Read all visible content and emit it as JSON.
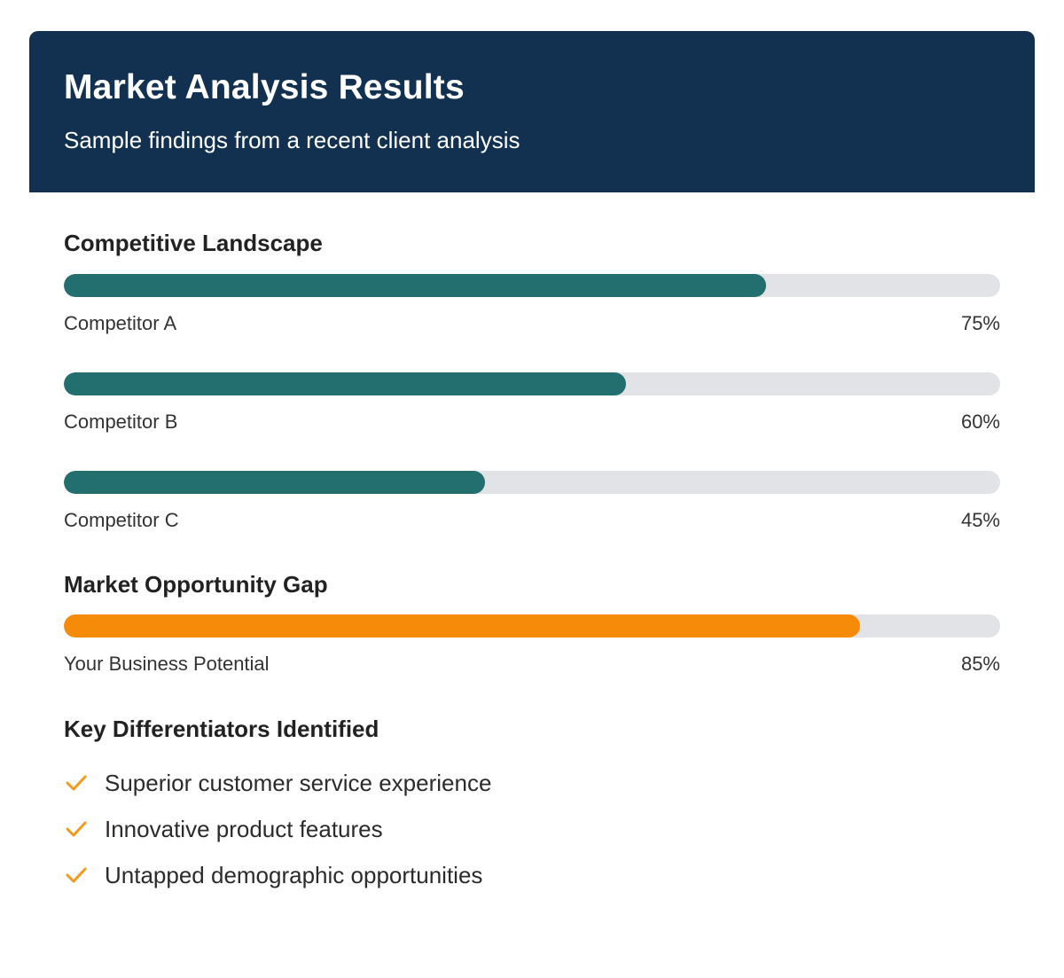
{
  "header": {
    "title": "Market Analysis Results",
    "subtitle": "Sample findings from a recent client analysis"
  },
  "competitive": {
    "title": "Competitive Landscape",
    "items": [
      {
        "label": "Competitor A",
        "value_text": "75%",
        "value": 75
      },
      {
        "label": "Competitor B",
        "value_text": "60%",
        "value": 60
      },
      {
        "label": "Competitor C",
        "value_text": "45%",
        "value": 45
      }
    ]
  },
  "opportunity": {
    "title": "Market Opportunity Gap",
    "items": [
      {
        "label": "Your Business Potential",
        "value_text": "85%",
        "value": 85
      }
    ]
  },
  "differentiators": {
    "title": "Key Differentiators Identified",
    "items": [
      {
        "label": "Superior customer service experience",
        "icon": "check-icon"
      },
      {
        "label": "Innovative product features",
        "icon": "check-icon"
      },
      {
        "label": "Untapped demographic opportunities",
        "icon": "check-icon"
      }
    ]
  },
  "colors": {
    "header_bg": "#12304f",
    "competitor_bar": "#236e6e",
    "opportunity_bar": "#f68b09",
    "track": "#e1e3e6",
    "check": "#f39a1c"
  }
}
